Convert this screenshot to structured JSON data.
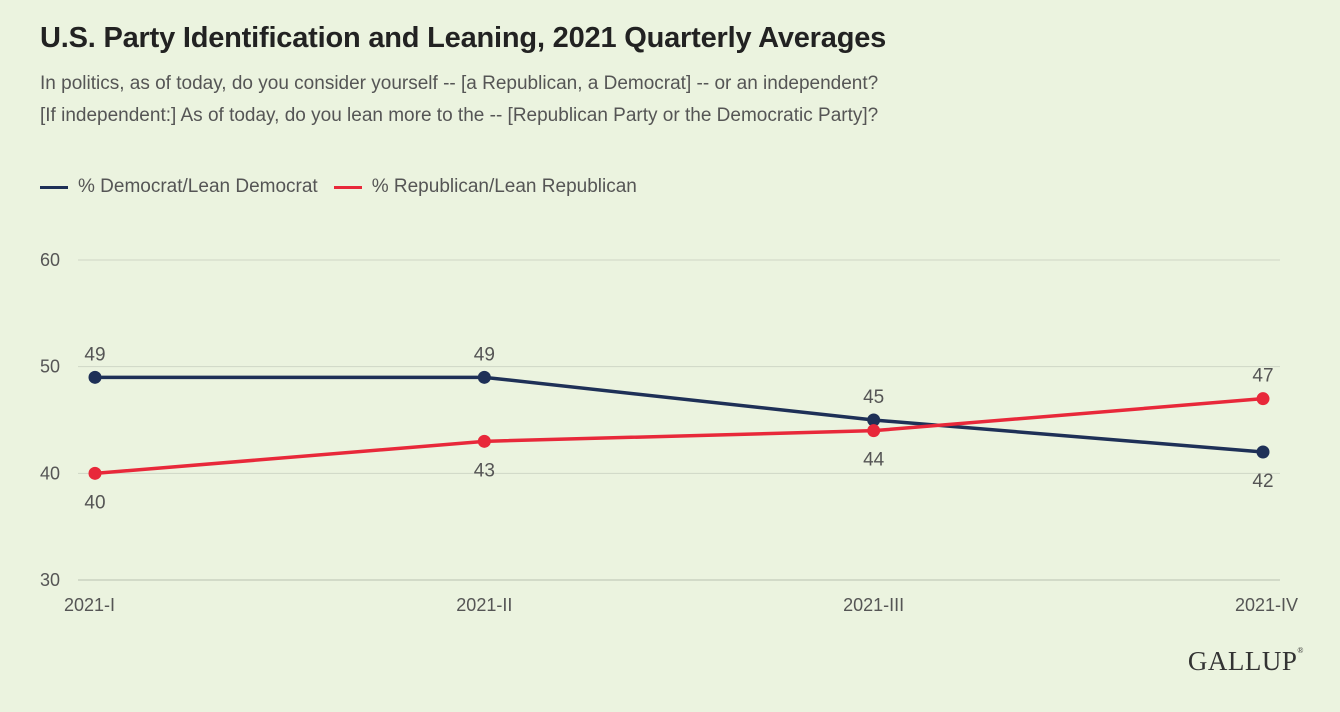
{
  "title": "U.S. Party Identification and Leaning, 2021 Quarterly Averages",
  "subtitle_lines": [
    "In politics, as of today, do you consider yourself -- [a Republican, a Democrat] -- or an independent?",
    "[If independent:] As of today, do you lean more to the -- [Republican Party or the Democratic Party]?"
  ],
  "brand": "GALLUP",
  "colors": {
    "background": "#ebf3df",
    "democrat": "#1e3057",
    "republican": "#e8283a",
    "grid": "#cfd6c6"
  },
  "chart_data": {
    "type": "line",
    "title": "U.S. Party Identification and Leaning, 2021 Quarterly Averages",
    "xlabel": "",
    "ylabel": "",
    "categories": [
      "2021-I",
      "2021-II",
      "2021-III",
      "2021-IV"
    ],
    "ylim": [
      30,
      60
    ],
    "yticks": [
      30,
      40,
      50,
      60
    ],
    "grid": true,
    "legend": "top-left",
    "series": [
      {
        "name": "% Democrat/Lean Democrat",
        "color": "#1e3057",
        "values": [
          49,
          49,
          45,
          42
        ],
        "label_pos": [
          "above",
          "above",
          "above",
          "below"
        ]
      },
      {
        "name": "% Republican/Lean Republican",
        "color": "#e8283a",
        "values": [
          40,
          43,
          44,
          47
        ],
        "label_pos": [
          "below",
          "below",
          "below",
          "above"
        ]
      }
    ]
  }
}
